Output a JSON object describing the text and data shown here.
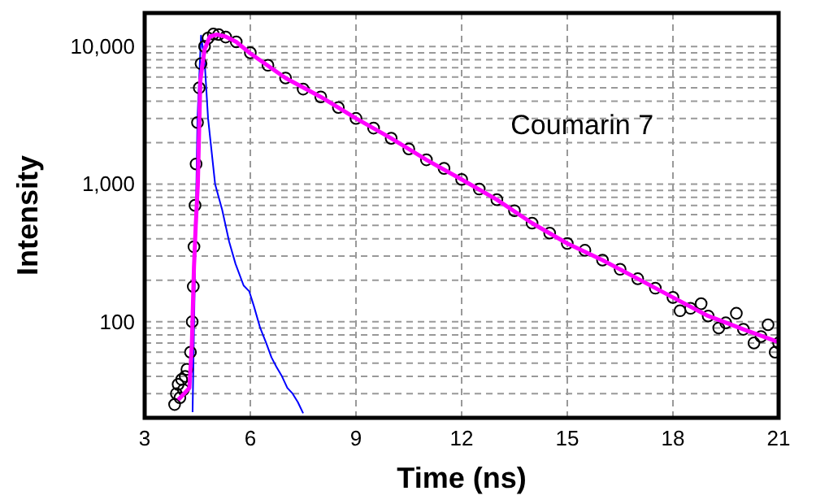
{
  "chart_data": {
    "type": "scatter",
    "xlabel": "Time (ns)",
    "ylabel": "Intensity",
    "log": "y",
    "grid": true,
    "annotations": [
      "Coumarin 7"
    ],
    "xlim": [
      3,
      21
    ],
    "xticks": [
      3,
      6,
      9,
      12,
      15,
      18,
      21
    ],
    "ylim": [
      20,
      17500
    ],
    "yticks": [
      {
        "value": 30,
        "label": null
      },
      {
        "value": 40,
        "label": null
      },
      {
        "value": 50,
        "label": null
      },
      {
        "value": 60,
        "label": null
      },
      {
        "value": 70,
        "label": null
      },
      {
        "value": 80,
        "label": null
      },
      {
        "value": 90,
        "label": null
      },
      100,
      {
        "value": 200,
        "label": null
      },
      {
        "value": 300,
        "label": null
      },
      {
        "value": 400,
        "label": null
      },
      {
        "value": 500,
        "label": null
      },
      {
        "value": 600,
        "label": null
      },
      {
        "value": 700,
        "label": null
      },
      {
        "value": 800,
        "label": null
      },
      {
        "value": 900,
        "label": null
      },
      {
        "value": 1000,
        "label": "1,000"
      },
      {
        "value": 2000,
        "label": null
      },
      {
        "value": 3000,
        "label": null
      },
      {
        "value": 4000,
        "label": null
      },
      {
        "value": 5000,
        "label": null
      },
      {
        "value": 6000,
        "label": null
      },
      {
        "value": 7000,
        "label": null
      },
      {
        "value": 8000,
        "label": null
      },
      {
        "value": 9000,
        "label": null
      },
      {
        "value": 10000,
        "label": "10,000"
      }
    ],
    "series": [
      {
        "type": "line",
        "color": "#0000ff",
        "marker": "none",
        "x": [
          4.36,
          4.5,
          4.6,
          4.7,
          4.8,
          5.0,
          5.2,
          5.4,
          5.58,
          5.81,
          5.97,
          6.1,
          6.28,
          6.45,
          6.6,
          6.74,
          6.9,
          7.05,
          7.2,
          7.35,
          7.5
        ],
        "values": [
          22,
          3000,
          12000,
          8000,
          3000,
          1000,
          650,
          380,
          263,
          183,
          166,
          130,
          90,
          70,
          55,
          47,
          40,
          33,
          30,
          26,
          21.6
        ]
      },
      {
        "type": "scatter",
        "color": "#000000",
        "marker": "circle",
        "x": [
          3.85,
          3.9,
          3.95,
          4.0,
          4.05,
          4.1,
          4.15,
          4.2,
          4.3,
          4.35,
          4.38,
          4.4,
          4.43,
          4.46,
          4.5,
          4.55,
          4.6,
          4.7,
          4.8,
          4.95,
          5.1,
          5.3,
          5.6,
          6.0,
          6.5,
          7.0,
          7.5,
          8.0,
          8.5,
          9.0,
          9.5,
          10.0,
          10.5,
          11.0,
          11.5,
          12.0,
          12.5,
          13.0,
          13.5,
          14.0,
          14.5,
          15.0,
          15.5,
          16.0,
          16.5,
          17.0,
          17.5,
          18.0,
          18.2,
          18.5,
          18.8,
          19.0,
          19.3,
          19.5,
          19.8,
          20.0,
          20.3,
          20.5,
          20.7,
          20.9,
          21.0
        ],
        "values": [
          25,
          30,
          35,
          28,
          38,
          32,
          40,
          45,
          60,
          100,
          180,
          350,
          700,
          1400,
          2800,
          5000,
          7500,
          10000,
          11500,
          12300,
          12200,
          11700,
          10800,
          9000,
          7300,
          5900,
          4900,
          4300,
          3600,
          3000,
          2550,
          2150,
          1800,
          1500,
          1300,
          1080,
          920,
          770,
          640,
          520,
          440,
          370,
          330,
          280,
          240,
          205,
          175,
          150,
          120,
          125,
          135,
          110,
          90,
          98,
          115,
          88,
          70,
          78,
          95,
          60,
          70
        ]
      },
      {
        "type": "line",
        "color": "#ff00ff",
        "marker": "none",
        "x": [
          3.95,
          4.27,
          4.34,
          4.4,
          4.45,
          4.51,
          4.58,
          4.7,
          4.85,
          5.05,
          5.3,
          5.6,
          6,
          7,
          8,
          9,
          10,
          11,
          12,
          13,
          14,
          15,
          16,
          17,
          18,
          19,
          20,
          21
        ],
        "values": [
          27,
          33,
          68,
          250,
          500,
          1000,
          5660,
          9500,
          11800,
          12200,
          11800,
          10800,
          8900,
          5900,
          4300,
          3000,
          2150,
          1500,
          1080,
          770,
          520,
          370,
          280,
          205,
          150,
          110,
          88,
          71
        ]
      }
    ]
  }
}
